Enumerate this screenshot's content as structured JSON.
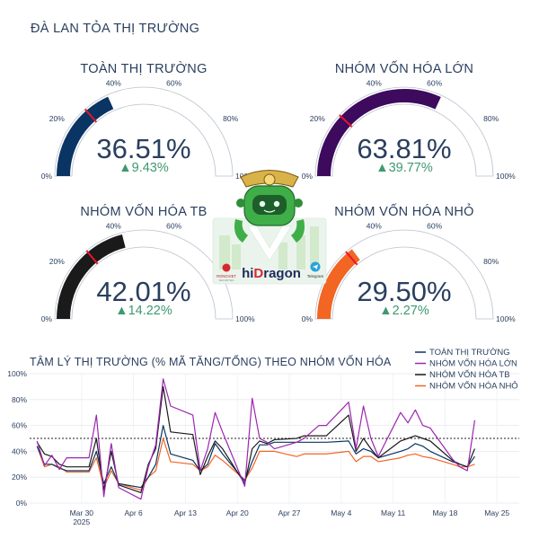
{
  "page_title": "ĐÀ LAN TỎA THỊ TRƯỜNG",
  "logo": {
    "brand_text": "hiDragon",
    "partner": "RONGVIET",
    "partner_sub": "SECURITIES",
    "telegram_label": "Telegram"
  },
  "gauges": [
    {
      "title": "TOÀN THỊ TRƯỜNG",
      "value": 36.51,
      "value_label": "36.51%",
      "delta_label": "▲9.43%",
      "threshold": 27.08,
      "color": "#0a3464"
    },
    {
      "title": "NHÓM VỐN HÓA LỚN",
      "value": 63.81,
      "value_label": "63.81%",
      "delta_label": "▲39.77%",
      "threshold": 24.04,
      "color": "#3d0a5e"
    },
    {
      "title": "NHÓM VỐN HÓA TB",
      "value": 42.01,
      "value_label": "42.01%",
      "delta_label": "▲14.22%",
      "threshold": 27.79,
      "color": "#1a1a1a"
    },
    {
      "title": "NHÓM VỐN HÓA NHỎ",
      "value": 29.5,
      "value_label": "29.50%",
      "delta_label": "▲2.27%",
      "threshold": 27.23,
      "color": "#f26522"
    }
  ],
  "gauge_ticks": [
    "0%",
    "20%",
    "40%",
    "60%",
    "80%",
    "100%"
  ],
  "chart_data": {
    "type": "line",
    "title": "TÂM LÝ THỊ TRƯỜNG (% MÃ TĂNG/TỔNG) THEO NHÓM VỐN HÓA",
    "x_ticks": [
      "Mar 30\n2025",
      "Apr 6",
      "Apr 13",
      "Apr 20",
      "Apr 27",
      "May 4",
      "May 11",
      "May 18",
      "May 25"
    ],
    "y_ticks": [
      "0%",
      "20%",
      "40%",
      "60%",
      "80%",
      "100%"
    ],
    "ylim": [
      0,
      100
    ],
    "reference_line": 50,
    "x": [
      "2025-03-24",
      "2025-03-25",
      "2025-03-26",
      "2025-03-27",
      "2025-03-28",
      "2025-03-31",
      "2025-04-01",
      "2025-04-02",
      "2025-04-03",
      "2025-04-04",
      "2025-04-07",
      "2025-04-08",
      "2025-04-09",
      "2025-04-10",
      "2025-04-11",
      "2025-04-14",
      "2025-04-15",
      "2025-04-16",
      "2025-04-17",
      "2025-04-18",
      "2025-04-21",
      "2025-04-22",
      "2025-04-23",
      "2025-04-24",
      "2025-04-25",
      "2025-04-28",
      "2025-04-29",
      "2025-04-30",
      "2025-05-01",
      "2025-05-02",
      "2025-05-05",
      "2025-05-06",
      "2025-05-07",
      "2025-05-08",
      "2025-05-09",
      "2025-05-12",
      "2025-05-13",
      "2025-05-14",
      "2025-05-15",
      "2025-05-16",
      "2025-05-19",
      "2025-05-20",
      "2025-05-21",
      "2025-05-22"
    ],
    "series": [
      {
        "name": "TOÀN THỊ TRƯỜNG",
        "color": "#0a3464",
        "values": [
          44,
          30,
          30,
          27,
          25,
          25,
          40,
          15,
          28,
          15,
          12,
          20,
          30,
          60,
          38,
          33,
          25,
          30,
          46,
          38,
          17,
          32,
          45,
          45,
          47,
          47,
          47,
          47,
          47,
          47,
          48,
          38,
          42,
          40,
          35,
          40,
          42,
          46,
          44,
          40,
          32,
          30,
          28,
          36
        ]
      },
      {
        "name": "NHÓM VỐN HÓA LỚN",
        "color": "#9c27b0",
        "values": [
          48,
          29,
          37,
          26,
          35,
          35,
          68,
          5,
          46,
          12,
          3,
          28,
          45,
          96,
          75,
          68,
          25,
          42,
          70,
          55,
          13,
          81,
          50,
          47,
          42,
          47,
          50,
          55,
          60,
          60,
          78,
          42,
          75,
          50,
          36,
          70,
          62,
          72,
          60,
          58,
          34,
          28,
          25,
          64
        ]
      },
      {
        "name": "NHÓM VỐN HÓA TB",
        "color": "#1a1a1a",
        "values": [
          47,
          38,
          36,
          30,
          28,
          28,
          50,
          10,
          40,
          14,
          8,
          30,
          42,
          90,
          55,
          53,
          22,
          36,
          48,
          42,
          15,
          42,
          48,
          46,
          49,
          50,
          52,
          52,
          52,
          52,
          68,
          40,
          50,
          42,
          35,
          48,
          50,
          52,
          50,
          48,
          33,
          30,
          28,
          42
        ]
      },
      {
        "name": "NHÓM VỐN HÓA NHỎ",
        "color": "#f26522",
        "values": [
          44,
          28,
          30,
          28,
          24,
          24,
          35,
          12,
          25,
          15,
          10,
          20,
          25,
          50,
          32,
          30,
          25,
          28,
          37,
          33,
          18,
          27,
          40,
          40,
          40,
          36,
          38,
          38,
          38,
          38,
          40,
          32,
          36,
          36,
          32,
          35,
          37,
          38,
          36,
          35,
          30,
          28,
          28,
          30
        ]
      }
    ]
  }
}
